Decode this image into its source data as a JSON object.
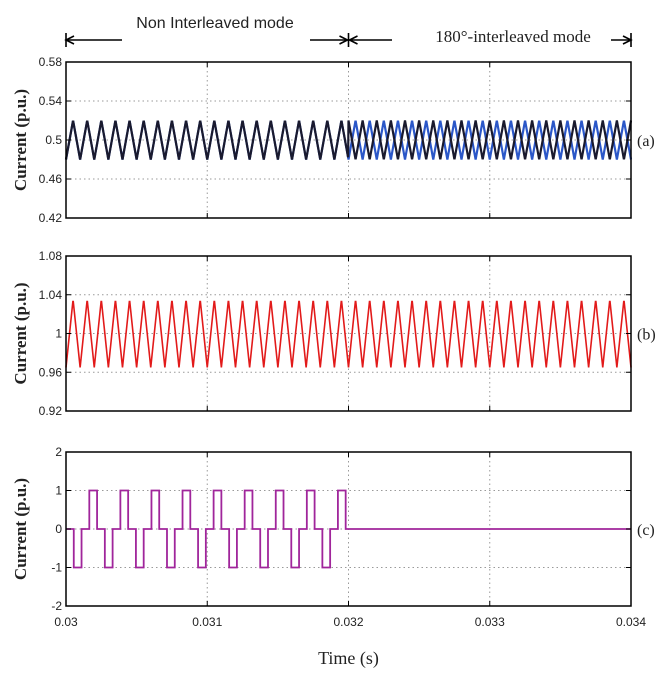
{
  "annotations": {
    "mode_left": "Non Interleaved mode",
    "mode_right": "180°-interleaved mode"
  },
  "colors": {
    "frame": "#000000",
    "grid": "#9a9a9a",
    "phase1": "#1a1a2e",
    "phase2": "#2b57c8",
    "sum": "#e21a1a",
    "ripple": "#a0259b"
  },
  "chart_data": [
    {
      "type": "line",
      "panel_label": "(a)",
      "ylabel": "Current (p.u.)",
      "xlabel": "Time (s)",
      "xlim": [
        0.03,
        0.034
      ],
      "ylim": [
        0.42,
        0.58
      ],
      "yticks": [
        "0.58",
        "0.54",
        "0.5",
        "0.46",
        "0.42"
      ],
      "xticks": [
        "0.03",
        "0.031",
        "0.032",
        "0.033",
        "0.034"
      ],
      "grid": true,
      "mode_switch_time": 0.032,
      "series": [
        {
          "role": "phase-1 triangular current",
          "center": 0.5,
          "amplitude": 0.02,
          "period": 0.0001,
          "interleave_shift_after_switch": 0.5
        },
        {
          "role": "phase-2 triangular current",
          "center": 0.5,
          "amplitude": 0.02,
          "period": 0.0001,
          "interleave_shift_after_switch": 0
        }
      ]
    },
    {
      "type": "line",
      "panel_label": "(b)",
      "ylabel": "Current (p.u.)",
      "xlabel": "Time (s)",
      "xlim": [
        0.03,
        0.034
      ],
      "ylim": [
        0.92,
        1.08
      ],
      "yticks": [
        "1.08",
        "1.04",
        "1",
        "0.96",
        "0.92"
      ],
      "xticks": [
        "0.03",
        "0.031",
        "0.032",
        "0.033",
        "0.034"
      ],
      "grid": true,
      "series": [
        {
          "role": "total current",
          "center": 1.0,
          "amplitude": 0.035,
          "period": 0.0001
        }
      ]
    },
    {
      "type": "line",
      "panel_label": "(c)",
      "ylabel": "Current (p.u.)",
      "xlabel": "Time (s)",
      "xlim": [
        0.03,
        0.034
      ],
      "ylim": [
        -2,
        2
      ],
      "yticks": [
        "2",
        "1",
        "0",
        "-1",
        "-2"
      ],
      "xticks": [
        "0.03",
        "0.031",
        "0.032",
        "0.033",
        "0.034"
      ],
      "grid": true,
      "series": [
        {
          "role": "current difference",
          "levels": [
            0,
            -1,
            0,
            1
          ],
          "period": 0.00022,
          "active_until": 0.032,
          "after_value": 0
        }
      ]
    }
  ]
}
